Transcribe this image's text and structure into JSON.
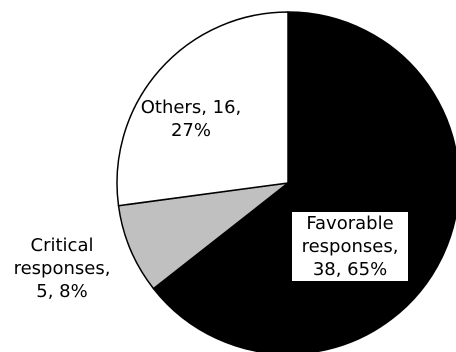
{
  "chart_data": {
    "type": "pie",
    "title": "",
    "start_angle_deg": 0,
    "direction": "clockwise",
    "slices": [
      {
        "label": "Favorable responses",
        "value": 38,
        "percent": "65%",
        "color": "#000000",
        "label_lines": [
          "Favorable",
          "responses,",
          "38, 65%"
        ]
      },
      {
        "label": "Critical responses",
        "value": 5,
        "percent": "8%",
        "color": "#c0c0c0",
        "label_lines": [
          "Critical",
          "responses,",
          "5, 8%"
        ]
      },
      {
        "label": "Others",
        "value": 16,
        "percent": "27%",
        "color": "#ffffff",
        "label_lines": [
          "Others, 16,",
          "27%"
        ]
      }
    ]
  }
}
